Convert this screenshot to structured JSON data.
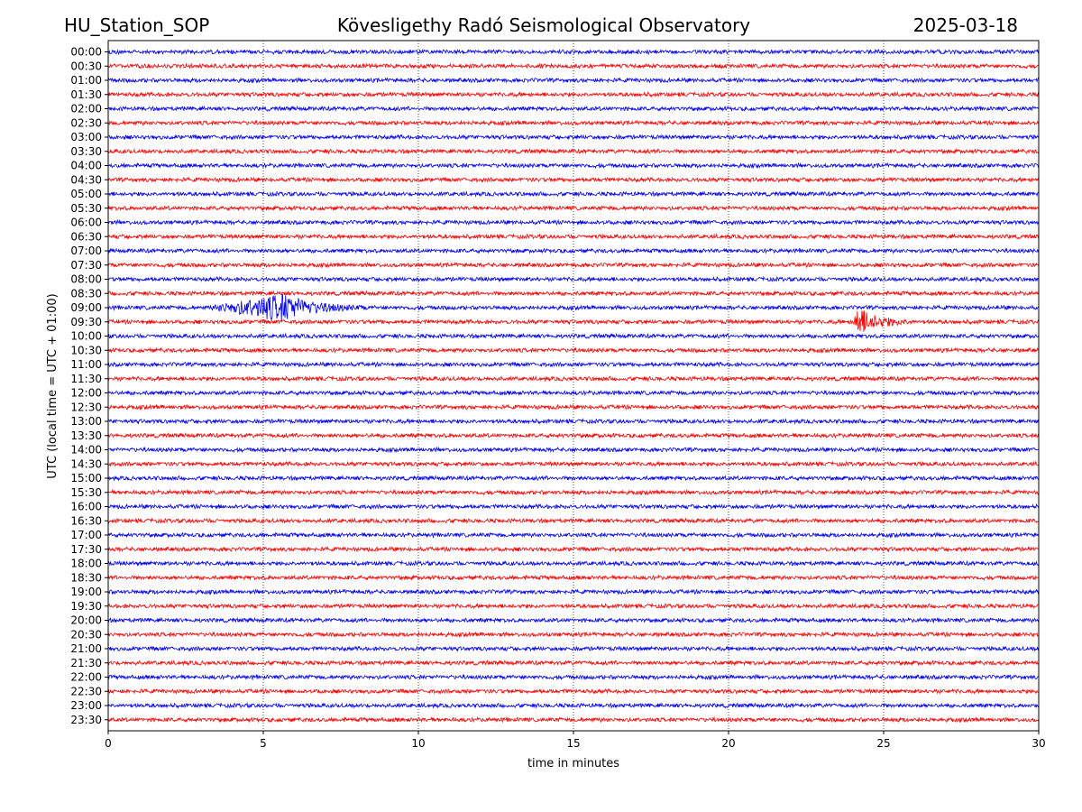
{
  "header": {
    "station": "HU_Station_SOP",
    "observatory": "Kövesligethy Radó Seismological Observatory",
    "date": "2025-03-18"
  },
  "chart_data": {
    "type": "line",
    "title": "Kövesligethy Radó Seismological Observatory",
    "xlabel": "time in minutes",
    "ylabel": "UTC (local time = UTC + 01:00)",
    "xlim": [
      0,
      30
    ],
    "xticks": [
      0,
      5,
      10,
      15,
      20,
      25,
      30
    ],
    "grid": "vertical dotted lines at x ticks",
    "trace_colors": [
      "#0000ff",
      "#ff0000"
    ],
    "trace_labels": [
      "00:00",
      "00:30",
      "01:00",
      "01:30",
      "02:00",
      "02:30",
      "03:00",
      "03:30",
      "04:00",
      "04:30",
      "05:00",
      "05:30",
      "06:00",
      "06:30",
      "07:00",
      "07:30",
      "08:00",
      "08:30",
      "09:00",
      "09:30",
      "10:00",
      "10:30",
      "11:00",
      "11:30",
      "12:00",
      "12:30",
      "13:00",
      "13:30",
      "14:00",
      "14:30",
      "15:00",
      "15:30",
      "16:00",
      "16:30",
      "17:00",
      "17:30",
      "18:00",
      "18:30",
      "19:00",
      "19:30",
      "20:00",
      "20:30",
      "21:00",
      "21:30",
      "22:00",
      "22:30",
      "23:00",
      "23:30"
    ],
    "events": [
      {
        "trace": "09:00",
        "start_min": 3.2,
        "peak_min": 5.7,
        "end_min": 8.3,
        "relative_amplitude": 1.0
      },
      {
        "trace": "09:30",
        "start_min": 24.0,
        "peak_min": 24.15,
        "end_min": 26.0,
        "relative_amplitude": 1.1
      }
    ]
  }
}
